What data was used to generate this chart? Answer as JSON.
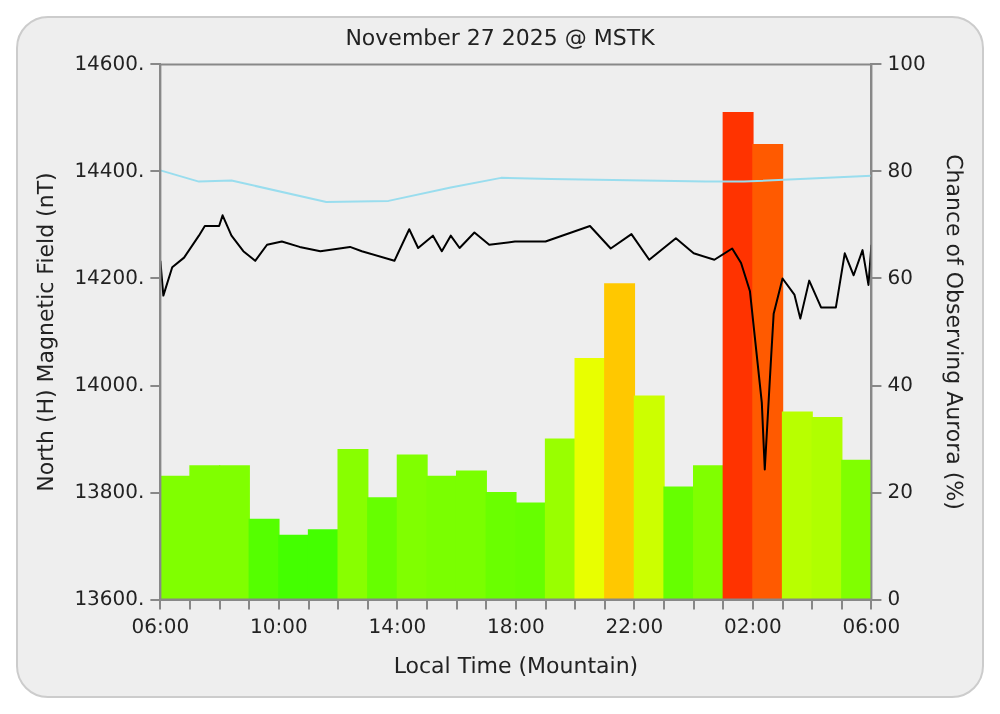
{
  "chart_data": {
    "type": "bar",
    "title": "November 27 2025 @ MSTK",
    "xlabel": "Local Time (Mountain)",
    "ylabel": "North (H) Magnetic Field (nT)",
    "y2label": "Chance of Observing Aurora (%)",
    "xlim": [
      "2025-11-27T06:00",
      "2025-11-28T06:00"
    ],
    "xticks": [
      {
        "value": "2025-11-27T06:00",
        "label": "06:00"
      },
      {
        "value": "2025-11-27T07:00",
        "label": null
      },
      {
        "value": "2025-11-27T08:00",
        "label": null
      },
      {
        "value": "2025-11-27T09:00",
        "label": null
      },
      {
        "value": "2025-11-27T10:00",
        "label": "10:00"
      },
      {
        "value": "2025-11-27T11:00",
        "label": null
      },
      {
        "value": "2025-11-27T12:00",
        "label": null
      },
      {
        "value": "2025-11-27T13:00",
        "label": null
      },
      {
        "value": "2025-11-27T14:00",
        "label": "14:00"
      },
      {
        "value": "2025-11-27T15:00",
        "label": null
      },
      {
        "value": "2025-11-27T16:00",
        "label": null
      },
      {
        "value": "2025-11-27T17:00",
        "label": null
      },
      {
        "value": "2025-11-27T18:00",
        "label": "18:00"
      },
      {
        "value": "2025-11-27T19:00",
        "label": null
      },
      {
        "value": "2025-11-27T20:00",
        "label": null
      },
      {
        "value": "2025-11-27T21:00",
        "label": null
      },
      {
        "value": "2025-11-27T22:00",
        "label": "22:00"
      },
      {
        "value": "2025-11-27T23:00",
        "label": null
      },
      {
        "value": "2025-11-28T00:00",
        "label": null
      },
      {
        "value": "2025-11-28T01:00",
        "label": null
      },
      {
        "value": "2025-11-28T02:00",
        "label": "02:00"
      },
      {
        "value": "2025-11-28T03:00",
        "label": null
      },
      {
        "value": "2025-11-28T04:00",
        "label": null
      },
      {
        "value": "2025-11-28T05:00",
        "label": null
      },
      {
        "value": "2025-11-28T06:00",
        "label": "06:00"
      }
    ],
    "ylim": [
      13600,
      14600
    ],
    "yticks": [
      {
        "value": 13600,
        "label": "13600."
      },
      {
        "value": 13800,
        "label": "13800."
      },
      {
        "value": 14000,
        "label": "14000."
      },
      {
        "value": 14200,
        "label": "14200."
      },
      {
        "value": 14400,
        "label": "14400."
      },
      {
        "value": 14600,
        "label": "14600."
      }
    ],
    "y2lim": [
      0,
      100
    ],
    "y2ticks": [
      0,
      20,
      40,
      60,
      80,
      100
    ],
    "grid": false,
    "legend": false,
    "series": [
      {
        "axis": "y2",
        "x": [
          "2025-11-27T06:30",
          "2025-11-27T07:30",
          "2025-11-27T08:30",
          "2025-11-27T09:30",
          "2025-11-27T10:30",
          "2025-11-27T11:30",
          "2025-11-27T12:30",
          "2025-11-27T13:30",
          "2025-11-27T14:30",
          "2025-11-27T15:30",
          "2025-11-27T16:30",
          "2025-11-27T17:30",
          "2025-11-27T18:30",
          "2025-11-27T19:30",
          "2025-11-27T20:30",
          "2025-11-27T21:30",
          "2025-11-27T22:30",
          "2025-11-27T23:30",
          "2025-11-28T00:30",
          "2025-11-28T01:30",
          "2025-11-28T02:30",
          "2025-11-28T03:30",
          "2025-11-28T04:30",
          "2025-11-28T05:30"
        ],
        "values": [
          23,
          25,
          25,
          15,
          12,
          13,
          28,
          19,
          27,
          23,
          24,
          20,
          18,
          30,
          45,
          59,
          38,
          21,
          25,
          91,
          85,
          35,
          34,
          26
        ],
        "colors": [
          "#80ff00",
          "#80ff00",
          "#80ff00",
          "#55ff00",
          "#44ff00",
          "#44ff00",
          "#88ff00",
          "#66ff00",
          "#80ff00",
          "#7aff00",
          "#7aff00",
          "#6aff00",
          "#66ff00",
          "#99ff00",
          "#e8ff00",
          "#ffc800",
          "#ccff00",
          "#66ff00",
          "#80ff00",
          "#ff3300",
          "#ff5a00",
          "#b8ff00",
          "#b0ff00",
          "#80ff00"
        ]
      },
      {
        "type": "line",
        "axis": "y",
        "color": "#99ddee",
        "x": [
          "2025-11-27T06:00",
          "2025-11-27T07:18",
          "2025-11-27T08:24",
          "2025-11-27T11:36",
          "2025-11-27T13:42",
          "2025-11-27T15:48",
          "2025-11-27T17:30",
          "2025-11-27T19:12",
          "2025-11-28T00:24",
          "2025-11-28T01:42",
          "2025-11-28T06:00"
        ],
        "values": [
          14402,
          14381,
          14383,
          14343,
          14345,
          14370,
          14388,
          14386,
          14381,
          14381,
          14392
        ]
      },
      {
        "type": "line",
        "axis": "y",
        "color": "#000000",
        "x": [
          "2025-11-27T06:00",
          "2025-11-27T06:06",
          "2025-11-27T06:24",
          "2025-11-27T06:48",
          "2025-11-27T07:18",
          "2025-11-27T07:30",
          "2025-11-27T07:59",
          "2025-11-27T08:06",
          "2025-11-27T08:24",
          "2025-11-27T08:48",
          "2025-11-27T09:12",
          "2025-11-27T09:36",
          "2025-11-27T10:06",
          "2025-11-27T10:42",
          "2025-11-27T11:24",
          "2025-11-27T12:24",
          "2025-11-27T12:48",
          "2025-11-27T13:54",
          "2025-11-27T14:24",
          "2025-11-27T14:42",
          "2025-11-27T15:12",
          "2025-11-27T15:30",
          "2025-11-27T15:48",
          "2025-11-27T16:06",
          "2025-11-27T16:36",
          "2025-11-27T17:06",
          "2025-11-27T17:58",
          "2025-11-27T19:00",
          "2025-11-27T20:30",
          "2025-11-27T21:12",
          "2025-11-27T21:54",
          "2025-11-27T22:30",
          "2025-11-27T23:24",
          "2025-11-28T00:00",
          "2025-11-28T00:42",
          "2025-11-28T01:18",
          "2025-11-28T01:36",
          "2025-11-28T01:54",
          "2025-11-28T02:18",
          "2025-11-28T02:24",
          "2025-11-28T02:36",
          "2025-11-28T02:42",
          "2025-11-28T03:00",
          "2025-11-28T03:24",
          "2025-11-28T03:36",
          "2025-11-28T03:54",
          "2025-11-28T04:18",
          "2025-11-28T04:48",
          "2025-11-28T05:06",
          "2025-11-28T05:24",
          "2025-11-28T05:42",
          "2025-11-28T05:54",
          "2025-11-28T06:00"
        ],
        "values": [
          14233,
          14168,
          14221,
          14239,
          14280,
          14298,
          14298,
          14318,
          14280,
          14251,
          14233,
          14263,
          14269,
          14259,
          14251,
          14259,
          14251,
          14233,
          14292,
          14257,
          14280,
          14251,
          14280,
          14257,
          14286,
          14263,
          14269,
          14269,
          14298,
          14256,
          14283,
          14235,
          14275,
          14247,
          14235,
          14256,
          14229,
          14176,
          13968,
          13843,
          14039,
          14134,
          14200,
          14170,
          14125,
          14196,
          14146,
          14146,
          14247,
          14206,
          14253,
          14188,
          14263
        ]
      }
    ]
  }
}
